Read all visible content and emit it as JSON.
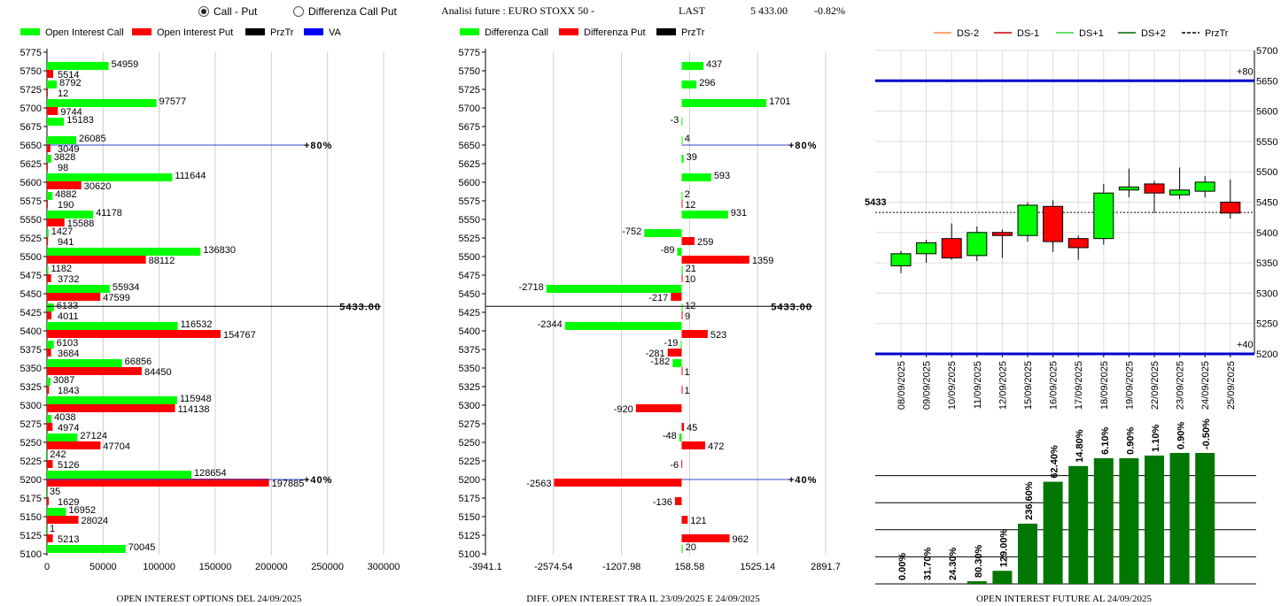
{
  "header": {
    "radio_call_put": "Call - Put",
    "radio_diff": "Differenza Call Put",
    "analysis_title": "Analisi future : EURO STOXX 50 -",
    "last_label": "LAST",
    "last_value": "5 433.00",
    "last_change": "-0.82%"
  },
  "colors": {
    "green": "#00ff00",
    "red": "#ff0000",
    "dark_green": "#007700",
    "blue": "#0000cc"
  },
  "chart_data": [
    {
      "type": "bar",
      "title": "OPEN INTEREST OPTIONS DEL 24/09/2025",
      "legend": [
        "Open Interest Call",
        "Open Interest Put",
        "PrzTr",
        "VA"
      ],
      "strikes": [
        "5775",
        "5750",
        "5725",
        "5700",
        "5675",
        "5650",
        "5625",
        "5600",
        "5575",
        "5550",
        "5525",
        "5500",
        "5475",
        "5450",
        "5425",
        "5400",
        "5375",
        "5350",
        "5325",
        "5300",
        "5275",
        "5250",
        "5225",
        "5200",
        "5175",
        "5150",
        "5125",
        "5100"
      ],
      "series": [
        {
          "name": "Open Interest Call",
          "values": [
            null,
            54959,
            8792,
            97577,
            15183,
            26085,
            3828,
            111644,
            4882,
            41178,
            1427,
            136830,
            1182,
            55934,
            6133,
            116532,
            6103,
            66856,
            3087,
            115948,
            4038,
            27124,
            242,
            128654,
            35,
            16952,
            1,
            70045
          ]
        },
        {
          "name": "Open Interest Put",
          "values": [
            null,
            5514,
            12,
            9744,
            null,
            3049,
            98,
            30620,
            190,
            15588,
            941,
            88112,
            3732,
            47599,
            4011,
            154767,
            3684,
            84450,
            1843,
            114138,
            4974,
            47704,
            5126,
            197885,
            1629,
            28024,
            5213,
            null
          ]
        }
      ],
      "x_ticks": [
        "0",
        "50000",
        "100000",
        "150000",
        "200000",
        "250000",
        "300000"
      ],
      "xlim": [
        0,
        300000
      ],
      "price_line": {
        "strike": 5433,
        "label": "5433.00"
      },
      "va_lines": [
        {
          "strike": 5650,
          "label": "80%"
        },
        {
          "strike": 5200,
          "label": "40%"
        }
      ]
    },
    {
      "type": "bar",
      "title": "DIFF. OPEN INTEREST TRA IL 23/09/2025 E 24/09/2025",
      "legend": [
        "Differenza Call",
        "Differenza Put",
        "PrzTr"
      ],
      "strikes": [
        "5775",
        "5750",
        "5725",
        "5700",
        "5675",
        "5650",
        "5625",
        "5600",
        "5575",
        "5550",
        "5525",
        "5500",
        "5475",
        "5450",
        "5425",
        "5400",
        "5375",
        "5350",
        "5325",
        "5300",
        "5275",
        "5250",
        "5225",
        "5200",
        "5175",
        "5150",
        "5125",
        "5100"
      ],
      "series": [
        {
          "name": "Differenza Call",
          "values": [
            null,
            437,
            296,
            1701,
            -3,
            4,
            39,
            593,
            2,
            931,
            -752,
            -89,
            21,
            -2718,
            12,
            -2344,
            -19,
            -182,
            null,
            null,
            null,
            -48,
            null,
            null,
            null,
            null,
            null,
            20
          ]
        },
        {
          "name": "Differenza Put",
          "values": [
            null,
            null,
            null,
            null,
            null,
            null,
            null,
            null,
            12,
            null,
            259,
            1359,
            10,
            -217,
            9,
            523,
            -281,
            1,
            1,
            -920,
            45,
            472,
            -6,
            -2563,
            -136,
            121,
            962,
            null
          ]
        }
      ],
      "x_ticks": [
        "-3941.1",
        "-2574.54",
        "-1207.98",
        "158.58",
        "1525.14",
        "2891.7"
      ],
      "xlim": [
        -3941.1,
        2891.7
      ],
      "price_line": {
        "strike": 5433,
        "label": "5433.00"
      },
      "va_lines": [
        {
          "strike": 5650,
          "label": "80%"
        },
        {
          "strike": 5200,
          "label": "40%"
        }
      ]
    },
    {
      "type": "candlestick",
      "legend": [
        "DS-2",
        "DS-1",
        "DS+1",
        "DS+2",
        "PrzTr"
      ],
      "y_ticks": [
        "5700",
        "5650",
        "5600",
        "5550",
        "5500",
        "5450",
        "5400",
        "5350",
        "5300",
        "5250",
        "5200"
      ],
      "ylim": [
        5200,
        5700
      ],
      "price_label": "5433",
      "price": 5433,
      "bands": [
        {
          "value": 5650,
          "label": "+80"
        },
        {
          "value": 5200,
          "label": "+40"
        }
      ],
      "dates": [
        "08/09/2025",
        "09/09/2025",
        "10/09/2025",
        "11/09/2025",
        "12/09/2025",
        "15/09/2025",
        "16/09/2025",
        "17/09/2025",
        "18/09/2025",
        "19/09/2025",
        "22/09/2025",
        "23/09/2025",
        "24/09/2025",
        "25/09/2025"
      ],
      "candles": [
        {
          "o": 5345,
          "h": 5370,
          "l": 5333,
          "c": 5365
        },
        {
          "o": 5365,
          "h": 5388,
          "l": 5350,
          "c": 5383
        },
        {
          "o": 5390,
          "h": 5415,
          "l": 5355,
          "c": 5358
        },
        {
          "o": 5362,
          "h": 5410,
          "l": 5353,
          "c": 5400
        },
        {
          "o": 5400,
          "h": 5405,
          "l": 5358,
          "c": 5395
        },
        {
          "o": 5395,
          "h": 5450,
          "l": 5385,
          "c": 5445
        },
        {
          "o": 5443,
          "h": 5453,
          "l": 5368,
          "c": 5385
        },
        {
          "o": 5390,
          "h": 5395,
          "l": 5355,
          "c": 5375
        },
        {
          "o": 5390,
          "h": 5480,
          "l": 5380,
          "c": 5465
        },
        {
          "o": 5470,
          "h": 5505,
          "l": 5458,
          "c": 5475
        },
        {
          "o": 5480,
          "h": 5485,
          "l": 5432,
          "c": 5465
        },
        {
          "o": 5462,
          "h": 5507,
          "l": 5455,
          "c": 5470
        },
        {
          "o": 5468,
          "h": 5493,
          "l": 5458,
          "c": 5483
        },
        {
          "o": 5450,
          "h": 5487,
          "l": 5423,
          "c": 5432
        }
      ]
    },
    {
      "type": "bar",
      "title": "OPEN INTEREST FUTURE AL 24/09/2025",
      "labels": [
        "0.00%",
        "31.70%",
        "24.30%",
        "80.30%",
        "129.00%",
        "236.60%",
        "62.40%",
        "14.80%",
        "6.10%",
        "0.90%",
        "1.10%",
        "0.90%",
        "-0.50%"
      ],
      "values": [
        0,
        0,
        0,
        1,
        5,
        23,
        39,
        45,
        48,
        48,
        49,
        50,
        50
      ]
    }
  ]
}
